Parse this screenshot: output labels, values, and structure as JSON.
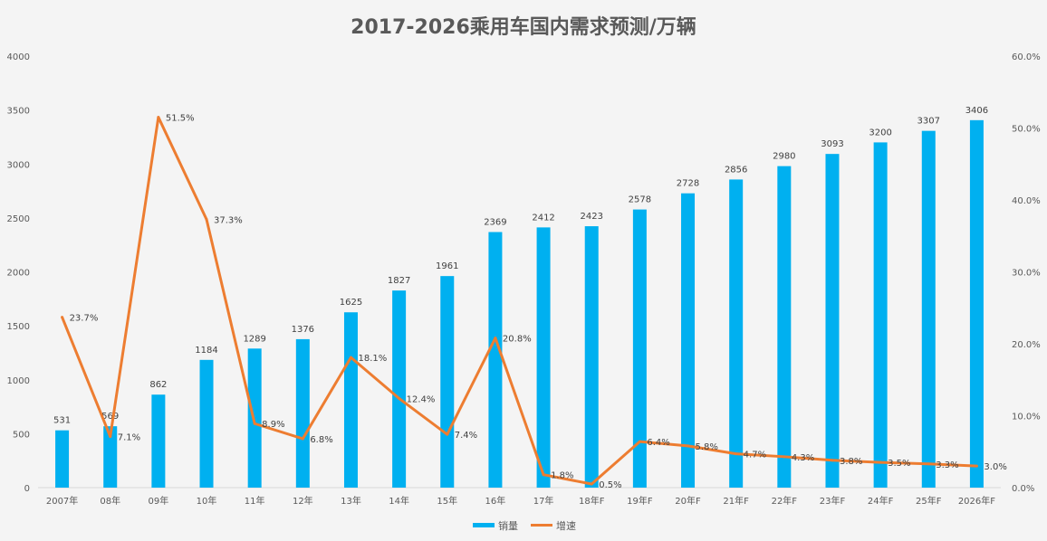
{
  "chart_data": {
    "type": "bar+line",
    "title": "2017-2026乘用车国内需求预测/万辆",
    "categories": [
      "2007年",
      "08年",
      "09年",
      "10年",
      "11年",
      "12年",
      "13年",
      "14年",
      "15年",
      "16年",
      "17年",
      "18年F",
      "19年F",
      "20年F",
      "21年F",
      "22年F",
      "23年F",
      "24年F",
      "25年F",
      "2026年F"
    ],
    "series": [
      {
        "name": "销量",
        "type": "bar",
        "axis": "left",
        "color": "#00b0f0",
        "values": [
          531,
          569,
          862,
          1184,
          1289,
          1376,
          1625,
          1827,
          1961,
          2369,
          2412,
          2423,
          2578,
          2728,
          2856,
          2980,
          3093,
          3200,
          3307,
          3406
        ],
        "labels": [
          "531",
          "569",
          "862",
          "1184",
          "1289",
          "1376",
          "1625",
          "1827",
          "1961",
          "2369",
          "2412",
          "2423",
          "2578",
          "2728",
          "2856",
          "2980",
          "3093",
          "3200",
          "3307",
          "3406"
        ]
      },
      {
        "name": "增速",
        "type": "line",
        "axis": "right",
        "color": "#ed7d31",
        "values": [
          23.7,
          7.1,
          51.5,
          37.3,
          8.9,
          6.8,
          18.1,
          12.4,
          7.4,
          20.8,
          1.8,
          0.5,
          6.4,
          5.8,
          4.7,
          4.3,
          3.8,
          3.5,
          3.3,
          3.0
        ],
        "labels": [
          "23.7%",
          "7.1%",
          "51.5%",
          "37.3%",
          "8.9%",
          "6.8%",
          "18.1%",
          "12.4%",
          "7.4%",
          "20.8%",
          "1.8%",
          "0.5%",
          "6.4%",
          "5.8%",
          "4.7%",
          "4.3%",
          "3.8%",
          "3.5%",
          "3.3%",
          "3.0%"
        ]
      }
    ],
    "left_axis": {
      "ylim": [
        0,
        4000
      ],
      "ticks": [
        "0",
        "500",
        "1000",
        "1500",
        "2000",
        "2500",
        "3000",
        "3500",
        "4000"
      ]
    },
    "right_axis": {
      "ylim": [
        0,
        60
      ],
      "ticks": [
        "0.0%",
        "10.0%",
        "20.0%",
        "30.0%",
        "40.0%",
        "50.0%",
        "60.0%"
      ]
    },
    "grid": false,
    "legend": "bottom"
  }
}
